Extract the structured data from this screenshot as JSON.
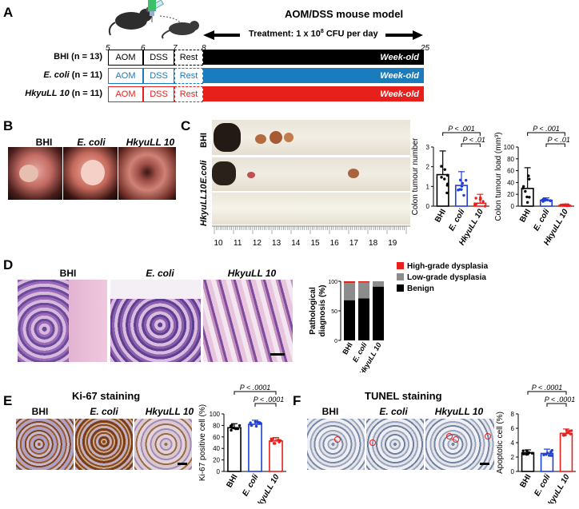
{
  "panelA": {
    "label": "A",
    "title": "AOM/DSS mouse model",
    "treatment_pre": "Treatment: 1 x 10",
    "treatment_sup": "8",
    "treatment_post": " CFU per day",
    "weeks": [
      "5",
      "6",
      "7",
      "8",
      "25"
    ],
    "groups": [
      {
        "name": "BHI",
        "n": "(n = 13)",
        "color": "#000000",
        "aom": "AOM",
        "dss": "DSS",
        "rest": "Rest",
        "bar": "Week-old"
      },
      {
        "name": "E. coli",
        "n": "(n = 11)",
        "color": "#1a7bbd",
        "aom": "AOM",
        "dss": "DSS",
        "rest": "Rest",
        "bar": "Week-old"
      },
      {
        "name": "HkyuLL 10",
        "n": "(n = 11)",
        "color": "#e8201c",
        "aom": "AOM",
        "dss": "DSS",
        "rest": "Rest",
        "bar": "Week-old"
      }
    ]
  },
  "panelB": {
    "label": "B",
    "captions": [
      "BHI",
      "E. coli",
      "HkyuLL 10"
    ]
  },
  "panelC": {
    "label": "C",
    "row_labels": [
      "BHI",
      "E.coli",
      "HkyuLL10"
    ],
    "ruler_ticks": [
      "10",
      "11",
      "12",
      "13",
      "14",
      "15",
      "16",
      "17",
      "18",
      "19"
    ]
  },
  "panelD": {
    "label": "D",
    "captions": [
      "BHI",
      "E. coli",
      "HkyuLL 10"
    ]
  },
  "panelE": {
    "label": "E",
    "title": "Ki-67 staining",
    "captions": [
      "BHI",
      "E. coli",
      "HkyuLL 10"
    ]
  },
  "panelF": {
    "label": "F",
    "title": "TUNEL staining",
    "captions": [
      "BHI",
      "E. coli",
      "HkyuLL 10"
    ]
  },
  "colors": {
    "bhi": "#000000",
    "ecoli": "#1f3fd6",
    "hkyull": "#e8201c",
    "gray": "#8c8c8c"
  },
  "chart_data": [
    {
      "type": "bar",
      "id": "tumour-number",
      "ylabel": "Colon tumour number",
      "categories": [
        "BHI",
        "E. coli",
        "HkyuLL 10"
      ],
      "values": [
        1.6,
        1.05,
        0.15
      ],
      "sd": [
        1.2,
        0.7,
        0.45
      ],
      "ylim": [
        0,
        3
      ],
      "yticks": [
        "0",
        "1",
        "2",
        "3"
      ],
      "annotations": [
        "P < .001",
        "P < .01"
      ]
    },
    {
      "type": "bar",
      "id": "tumour-load",
      "ylabel": "Colon tumour load (mm³)",
      "categories": [
        "BHI",
        "E. coli",
        "HkyuLL 10"
      ],
      "values": [
        30,
        10,
        1.5
      ],
      "sd": [
        35,
        4,
        2
      ],
      "ylim": [
        0,
        100
      ],
      "yticks": [
        "0",
        "20",
        "40",
        "60",
        "80",
        "100"
      ],
      "annotations": [
        "P < .001",
        "P < .01"
      ]
    },
    {
      "type": "bar",
      "id": "pathology",
      "ylabel": "Pathological diagnosis (%)",
      "categories": [
        "BHI",
        "E. coli",
        "HkyuLL 10"
      ],
      "series": [
        {
          "name": "Benign",
          "values": [
            68,
            71,
            91
          ]
        },
        {
          "name": "Low-grade dysplasia",
          "values": [
            29,
            27,
            9
          ]
        },
        {
          "name": "High-grade dysplasia",
          "values": [
            3,
            2,
            0
          ]
        }
      ],
      "ylim": [
        0,
        100
      ],
      "yticks": [
        "0",
        "50",
        "100"
      ]
    },
    {
      "type": "bar",
      "id": "ki67",
      "ylabel": "Ki-67 positive cell (%)",
      "categories": [
        "BHI",
        "E. coli",
        "HkyuLL 10"
      ],
      "values": [
        76,
        82,
        53
      ],
      "sd": [
        7,
        7,
        6
      ],
      "ylim": [
        0,
        100
      ],
      "yticks": [
        "0",
        "20",
        "40",
        "60",
        "80",
        "100"
      ],
      "annotations": [
        "P < .0001",
        "P < .0001"
      ]
    },
    {
      "type": "bar",
      "id": "apoptotic",
      "ylabel": "Apoptotic cell (%)",
      "categories": [
        "BHI",
        "E. coli",
        "HkyuLL 10"
      ],
      "values": [
        2.6,
        2.5,
        5.3
      ],
      "sd": [
        0.4,
        0.6,
        0.6
      ],
      "ylim": [
        0,
        8
      ],
      "yticks": [
        "0",
        "2",
        "4",
        "6",
        "8"
      ],
      "annotations": [
        "P < .0001",
        "P < .0001"
      ]
    }
  ]
}
